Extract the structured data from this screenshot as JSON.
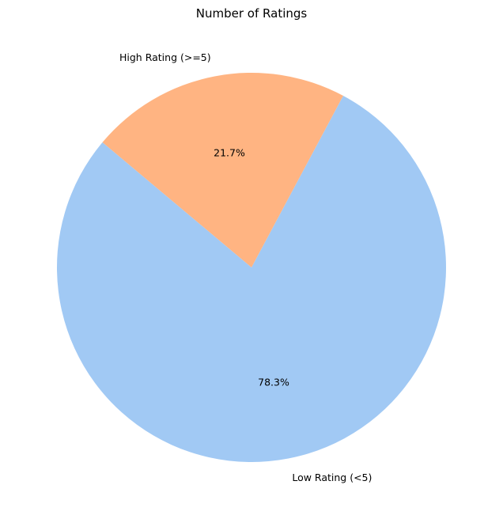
{
  "chart_data": {
    "type": "pie",
    "title": "Number of Ratings",
    "slices": [
      {
        "label": "Low Rating (<5)",
        "value": 78.3,
        "pct_label": "78.3%",
        "color": "#a1c9f4"
      },
      {
        "label": "High Rating (>=5)",
        "value": 21.7,
        "pct_label": "21.7%",
        "color": "#ffb482"
      }
    ],
    "start_angle_deg": 140,
    "direction": "counterclockwise"
  }
}
